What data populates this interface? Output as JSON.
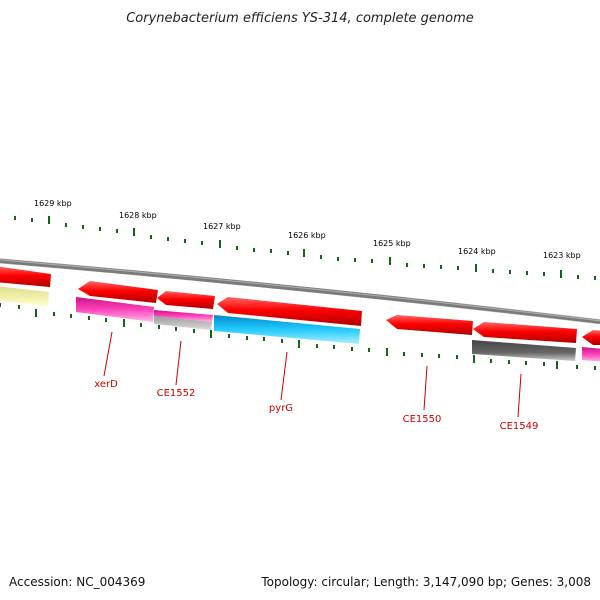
{
  "title": "Corynebacterium efficiens YS-314, complete genome",
  "footer": {
    "accession": "Accession: NC_004369",
    "info": "Topology: circular; Length: 3,147,090 bp; Genes: 3,008"
  },
  "ruler": {
    "labels": [
      "1629 kbp",
      "1628 kbp",
      "1627 kbp",
      "1626 kbp",
      "1625 kbp",
      "1624 kbp",
      "1623 kbp"
    ]
  },
  "genes": [
    {
      "label": "xerD"
    },
    {
      "label": "CE1552"
    },
    {
      "label": "pyrG"
    },
    {
      "label": "CE1550"
    },
    {
      "label": "CE1549"
    }
  ],
  "colors": {
    "forward_gene": "#ff0000",
    "cds_magenta": "#ee22aa",
    "cds_cyan": "#11aadd",
    "cds_grey": "#555555",
    "cds_lightgrey": "#aaaaaa",
    "cds_yellow": "#eeee99",
    "backbone": "#888888",
    "tick": "#116611",
    "label_red": "#cc0000"
  }
}
